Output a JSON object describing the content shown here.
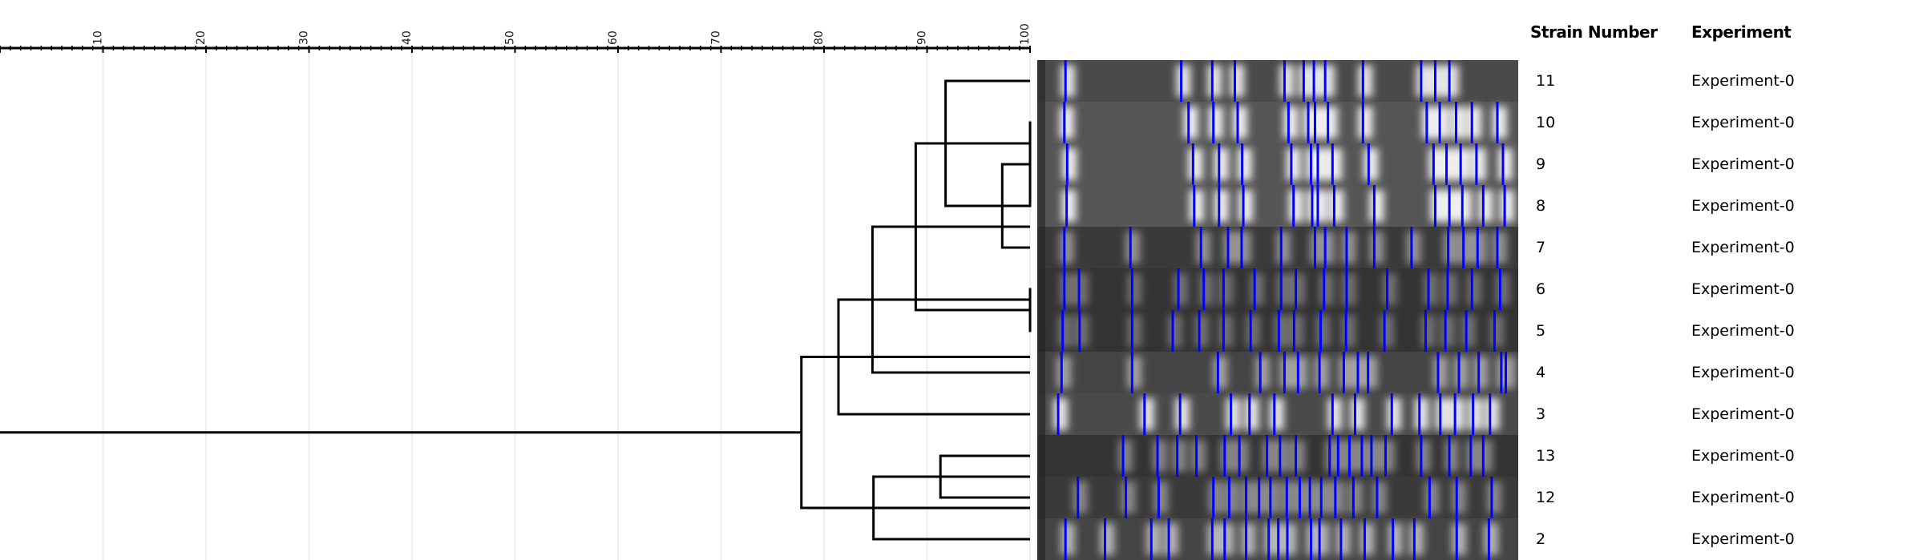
{
  "axis": {
    "min": 0,
    "max": 100,
    "major_step": 10,
    "minor_step": 1,
    "tick_labels": [
      "10",
      "20",
      "30",
      "40",
      "50",
      "60",
      "70",
      "80",
      "90",
      "100"
    ]
  },
  "table": {
    "headers": {
      "strain": "Strain Number",
      "experiment": "Experiment"
    },
    "rows": [
      {
        "strain": "11",
        "experiment": "Experiment-0"
      },
      {
        "strain": "10",
        "experiment": "Experiment-0"
      },
      {
        "strain": "9",
        "experiment": "Experiment-0"
      },
      {
        "strain": "8",
        "experiment": "Experiment-0"
      },
      {
        "strain": "7",
        "experiment": "Experiment-0"
      },
      {
        "strain": "6",
        "experiment": "Experiment-0"
      },
      {
        "strain": "5",
        "experiment": "Experiment-0"
      },
      {
        "strain": "4",
        "experiment": "Experiment-0"
      },
      {
        "strain": "3",
        "experiment": "Experiment-0"
      },
      {
        "strain": "13",
        "experiment": "Experiment-0"
      },
      {
        "strain": "12",
        "experiment": "Experiment-0"
      },
      {
        "strain": "2",
        "experiment": "Experiment-0"
      }
    ]
  },
  "dendrogram": {
    "sim": 77.8,
    "children": [
      {
        "sim": 81.4,
        "children": [
          {
            "sim": 84.7,
            "children": [
              {
                "sim": 88.9,
                "children": [
                  {
                    "sim": 91.8,
                    "children": [
                      {
                        "leaf": "11"
                      },
                      {
                        "sim": 97.3,
                        "children": [
                          {
                            "sim": 100,
                            "children": [
                              {
                                "leaf": "10"
                              },
                              {
                                "leaf": "9"
                              },
                              {
                                "leaf": "8"
                              }
                            ]
                          },
                          {
                            "leaf": "7"
                          }
                        ]
                      }
                    ]
                  },
                  {
                    "sim": 100,
                    "children": [
                      {
                        "leaf": "6"
                      },
                      {
                        "leaf": "5"
                      }
                    ]
                  }
                ]
              },
              {
                "leaf": "4"
              }
            ]
          },
          {
            "leaf": "3"
          }
        ]
      },
      {
        "sim": 84.8,
        "children": [
          {
            "sim": 91.3,
            "children": [
              {
                "leaf": "13"
              },
              {
                "leaf": "12"
              }
            ]
          },
          {
            "leaf": "2"
          }
        ]
      }
    ]
  },
  "colors": {
    "band_marker": "#0000ff",
    "tree": "#000000",
    "grid": "#eeeeee",
    "gel_background": "#3a3a3a"
  }
}
